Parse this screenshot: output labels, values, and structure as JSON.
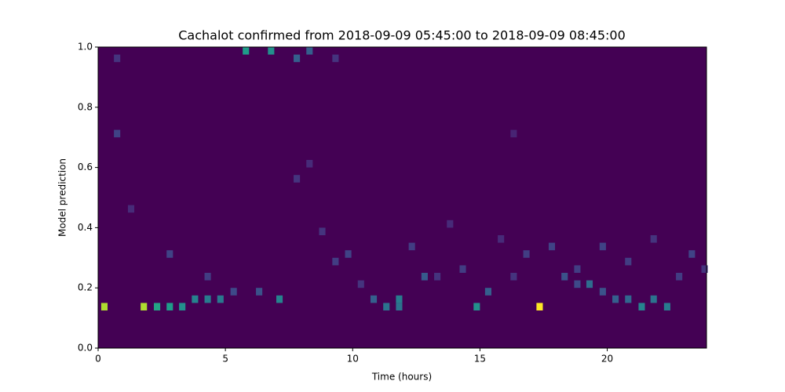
{
  "chart_data": {
    "type": "heatmap",
    "title": "Cachalot confirmed from 2018-09-09 05:45:00 to 2018-09-09 08:45:00",
    "x_label": "Time (hours)",
    "y_label": "Model prediction",
    "xlim": [
      0,
      23.9
    ],
    "ylim": [
      0,
      1
    ],
    "xticks": [
      0,
      5,
      10,
      15,
      20
    ],
    "yticks": [
      {
        "value": 0,
        "label": "0.0"
      },
      {
        "value": 0.2,
        "label": "0.2"
      },
      {
        "value": 0.4,
        "label": "0.4"
      },
      {
        "value": 0.6,
        "label": "0.6"
      },
      {
        "value": 0.8,
        "label": "0.8"
      },
      {
        "value": 1,
        "label": "1.0"
      }
    ],
    "colormap": "viridis",
    "zlim": [
      0,
      1
    ],
    "xbin_width": 0.25,
    "ybin_width": 0.025,
    "x": [
      0.12,
      1.67,
      2.19,
      2.69,
      3.18,
      14.75,
      17.22,
      21.23,
      22.23,
      11.2,
      11.7,
      10.7,
      3.68,
      4.18,
      4.68,
      11.7,
      19.18,
      20.7,
      21.7,
      7.0,
      6.2,
      5.2,
      12.7,
      15.2,
      18.2,
      18.7,
      19.7,
      20.2,
      5.68,
      6.67,
      8.18,
      7.68,
      0.62,
      0.62,
      1.17,
      2.69,
      4.18,
      7.68,
      8.68,
      9.2,
      9.7,
      10.2,
      12.2,
      13.2,
      14.2,
      16.2,
      16.7,
      17.7,
      18.7,
      19.7,
      20.7,
      21.7,
      22.7,
      23.2,
      23.7,
      9.2,
      13.7,
      15.7,
      8.18,
      16.2
    ],
    "y": [
      0.125,
      0.125,
      0.125,
      0.125,
      0.125,
      0.125,
      0.125,
      0.125,
      0.125,
      0.125,
      0.125,
      0.15,
      0.15,
      0.15,
      0.15,
      0.15,
      0.2,
      0.15,
      0.15,
      0.15,
      0.175,
      0.175,
      0.225,
      0.175,
      0.225,
      0.2,
      0.175,
      0.15,
      0.975,
      0.975,
      0.975,
      0.95,
      0.7,
      0.95,
      0.45,
      0.3,
      0.225,
      0.55,
      0.375,
      0.275,
      0.3,
      0.2,
      0.325,
      0.225,
      0.25,
      0.225,
      0.3,
      0.325,
      0.25,
      0.325,
      0.275,
      0.35,
      0.225,
      0.3,
      0.25,
      0.95,
      0.4,
      0.35,
      0.6,
      0.7
    ],
    "values": [
      0.88,
      0.88,
      0.58,
      0.55,
      0.5,
      0.5,
      1.0,
      0.45,
      0.42,
      0.38,
      0.38,
      0.3,
      0.45,
      0.42,
      0.4,
      0.42,
      0.35,
      0.33,
      0.38,
      0.45,
      0.25,
      0.22,
      0.28,
      0.3,
      0.25,
      0.22,
      0.25,
      0.3,
      0.55,
      0.5,
      0.3,
      0.3,
      0.2,
      0.15,
      0.12,
      0.2,
      0.18,
      0.15,
      0.15,
      0.18,
      0.2,
      0.15,
      0.18,
      0.15,
      0.18,
      0.15,
      0.18,
      0.2,
      0.18,
      0.2,
      0.18,
      0.15,
      0.18,
      0.2,
      0.15,
      0.15,
      0.12,
      0.12,
      0.12,
      0.1
    ]
  }
}
